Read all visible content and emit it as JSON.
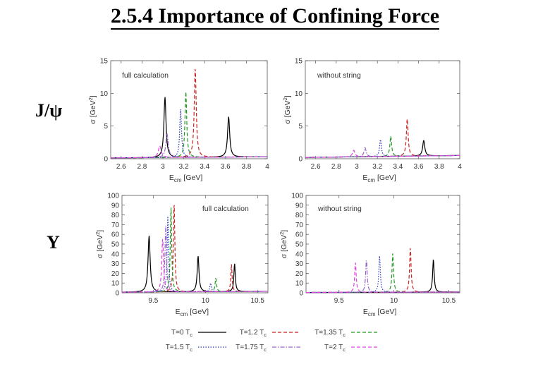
{
  "slide": {
    "title": "2.5.4  Importance of Confining Force",
    "row_labels": [
      "J/ψ",
      "Υ"
    ]
  },
  "legend": {
    "entries": [
      {
        "label": "T=0 T",
        "sub": "c",
        "color": "#000000",
        "dash": "solid"
      },
      {
        "label": "T=1.2 T",
        "sub": "c",
        "color": "#cc2222",
        "dash": "dashed"
      },
      {
        "label": "T=1.35 T",
        "sub": "c",
        "color": "#229922",
        "dash": "dashed"
      },
      {
        "label": "T=1.5 T",
        "sub": "c",
        "color": "#2233bb",
        "dash": "dotted"
      },
      {
        "label": "T=1.75 T",
        "sub": "c",
        "color": "#9966cc",
        "dash": "dashdot"
      },
      {
        "label": "T=2 T",
        "sub": "c",
        "color": "#dd44dd",
        "dash": "dashed"
      }
    ]
  },
  "chart_data": [
    {
      "type": "line",
      "name": "jpsi-full",
      "title": "full calculation",
      "xlabel": "E",
      "xlabel_sub": "cm",
      "xunit": "[GeV]",
      "ylabel": "σ [GeV",
      "ylabel_sup": "2",
      "ylabel_end": "]",
      "xlim": [
        2.5,
        4.0
      ],
      "ylim": [
        0,
        15
      ],
      "xticks": [
        2.6,
        2.8,
        3.0,
        3.2,
        3.4,
        3.6,
        3.8,
        4.0
      ],
      "xticklabels": [
        "2.6",
        "2.8",
        "3",
        "3.2",
        "3.4",
        "3.6",
        "3.8",
        "4"
      ],
      "yticks": [
        0,
        5,
        10,
        15
      ],
      "yticklabels": [
        "0",
        "5",
        "10",
        "15"
      ],
      "peaks": [
        {
          "series": 0,
          "x": 3.02,
          "y": 9.3,
          "w": 0.012
        },
        {
          "series": 0,
          "x": 3.63,
          "y": 6.2,
          "w": 0.012
        },
        {
          "series": 1,
          "x": 3.31,
          "y": 13.8,
          "w": 0.011
        },
        {
          "series": 2,
          "x": 3.22,
          "y": 10.1,
          "w": 0.01
        },
        {
          "series": 3,
          "x": 3.17,
          "y": 7.4,
          "w": 0.01
        },
        {
          "series": 4,
          "x": 3.04,
          "y": 3.6,
          "w": 0.014
        },
        {
          "series": 5,
          "x": 2.97,
          "y": 1.8,
          "w": 0.016
        }
      ],
      "baseline": 0.3
    },
    {
      "type": "line",
      "name": "jpsi-nostring",
      "title": "without string",
      "xlabel": "E",
      "xlabel_sub": "cm",
      "xunit": "[GeV]",
      "ylabel": "σ [GeV",
      "ylabel_sup": "2",
      "ylabel_end": "]",
      "xlim": [
        2.5,
        4.0
      ],
      "ylim": [
        0,
        15
      ],
      "xticks": [
        2.6,
        2.8,
        3.0,
        3.2,
        3.4,
        3.6,
        3.8,
        4.0
      ],
      "xticklabels": [
        "2.6",
        "2.8",
        "3",
        "3.2",
        "3.4",
        "3.6",
        "3.8",
        "4"
      ],
      "yticks": [
        0,
        5,
        10,
        15
      ],
      "yticklabels": [
        "0",
        "5",
        "10",
        "15"
      ],
      "peaks": [
        {
          "series": 0,
          "x": 3.65,
          "y": 2.4,
          "w": 0.012
        },
        {
          "series": 1,
          "x": 3.49,
          "y": 5.8,
          "w": 0.01
        },
        {
          "series": 2,
          "x": 3.33,
          "y": 3.1,
          "w": 0.01
        },
        {
          "series": 3,
          "x": 3.23,
          "y": 2.6,
          "w": 0.01
        },
        {
          "series": 4,
          "x": 3.08,
          "y": 1.4,
          "w": 0.012
        },
        {
          "series": 5,
          "x": 2.97,
          "y": 1.0,
          "w": 0.014
        }
      ],
      "baseline": 0.5
    },
    {
      "type": "line",
      "name": "upsilon-full",
      "title": "full calculation",
      "xlabel": "E",
      "xlabel_sub": "cm",
      "xunit": "[GeV]",
      "ylabel": "σ [GeV",
      "ylabel_sup": "2",
      "ylabel_end": "]",
      "xlim": [
        9.2,
        10.6
      ],
      "ylim": [
        0,
        100
      ],
      "xticks": [
        9.5,
        10.0,
        10.5
      ],
      "xticklabels": [
        "9.5",
        "10",
        "10.5"
      ],
      "yticks": [
        0,
        10,
        20,
        30,
        40,
        50,
        60,
        70,
        80,
        90,
        100
      ],
      "yticklabels": [
        "0",
        "10",
        "20",
        "30",
        "40",
        "50",
        "60",
        "70",
        "80",
        "90",
        "100"
      ],
      "peaks": [
        {
          "series": 0,
          "x": 9.46,
          "y": 58,
          "w": 0.012
        },
        {
          "series": 0,
          "x": 9.93,
          "y": 37,
          "w": 0.01
        },
        {
          "series": 0,
          "x": 10.28,
          "y": 29,
          "w": 0.008
        },
        {
          "series": 1,
          "x": 9.7,
          "y": 93,
          "w": 0.008
        },
        {
          "series": 1,
          "x": 10.25,
          "y": 28,
          "w": 0.007
        },
        {
          "series": 2,
          "x": 9.67,
          "y": 87,
          "w": 0.008
        },
        {
          "series": 2,
          "x": 10.1,
          "y": 14,
          "w": 0.008
        },
        {
          "series": 3,
          "x": 9.64,
          "y": 78,
          "w": 0.008
        },
        {
          "series": 3,
          "x": 10.05,
          "y": 9,
          "w": 0.008
        },
        {
          "series": 4,
          "x": 9.62,
          "y": 68,
          "w": 0.009
        },
        {
          "series": 5,
          "x": 9.59,
          "y": 55,
          "w": 0.01
        }
      ],
      "baseline": 1.5
    },
    {
      "type": "line",
      "name": "upsilon-nostring",
      "title": "without string",
      "xlabel": "E",
      "xlabel_sub": "cm",
      "xunit": "[GeV]",
      "ylabel": "σ [GeV",
      "ylabel_sup": "2",
      "ylabel_end": "]",
      "xlim": [
        9.2,
        10.6
      ],
      "ylim": [
        0,
        100
      ],
      "xticks": [
        9.5,
        10.0,
        10.5
      ],
      "xticklabels": [
        "9.5",
        "10",
        "10.5"
      ],
      "yticks": [
        0,
        10,
        20,
        30,
        40,
        50,
        60,
        70,
        80,
        90,
        100
      ],
      "yticklabels": [
        "0",
        "10",
        "20",
        "30",
        "40",
        "50",
        "60",
        "70",
        "80",
        "90",
        "100"
      ],
      "peaks": [
        {
          "series": 0,
          "x": 10.36,
          "y": 34,
          "w": 0.008
        },
        {
          "series": 1,
          "x": 10.15,
          "y": 46,
          "w": 0.008
        },
        {
          "series": 2,
          "x": 9.99,
          "y": 40,
          "w": 0.008
        },
        {
          "series": 3,
          "x": 9.87,
          "y": 38,
          "w": 0.008
        },
        {
          "series": 4,
          "x": 9.75,
          "y": 34,
          "w": 0.008
        },
        {
          "series": 5,
          "x": 9.65,
          "y": 31,
          "w": 0.008
        }
      ],
      "baseline": 0.8
    }
  ]
}
